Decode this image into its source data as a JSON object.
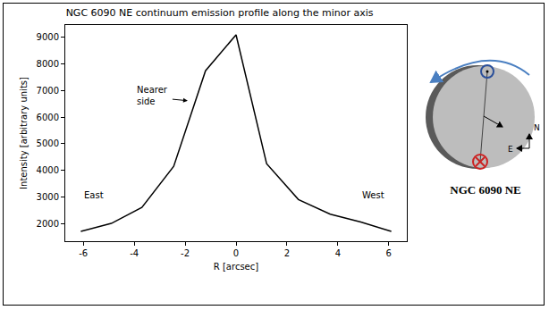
{
  "chart_data": {
    "type": "line",
    "title": "NGC 6090 NE continuum emission profile along the minor axis",
    "xlabel": "R [arcsec]",
    "ylabel": "Intensity [arbitrary units]",
    "x": [
      -6.1,
      -4.9,
      -3.7,
      -2.45,
      -1.2,
      0,
      1.2,
      2.45,
      3.7,
      4.9,
      6.1
    ],
    "values": [
      1700,
      2000,
      2600,
      4150,
      7750,
      9100,
      4250,
      2900,
      2350,
      2050,
      1700
    ],
    "color": "#000000",
    "xlim": [
      -6.71,
      6.71
    ],
    "ylim": [
      1330,
      9470
    ],
    "xticks": [
      -6,
      -4,
      -2,
      0,
      2,
      4,
      6
    ],
    "yticks": [
      2000,
      3000,
      4000,
      5000,
      6000,
      7000,
      8000,
      9000
    ],
    "grid": false,
    "annotations": [
      {
        "text": "Nearer side"
      },
      {
        "text": "East"
      },
      {
        "text": "West"
      }
    ],
    "diagram": {
      "title": "NGC 6090 NE",
      "north": "N",
      "east": "E"
    }
  }
}
